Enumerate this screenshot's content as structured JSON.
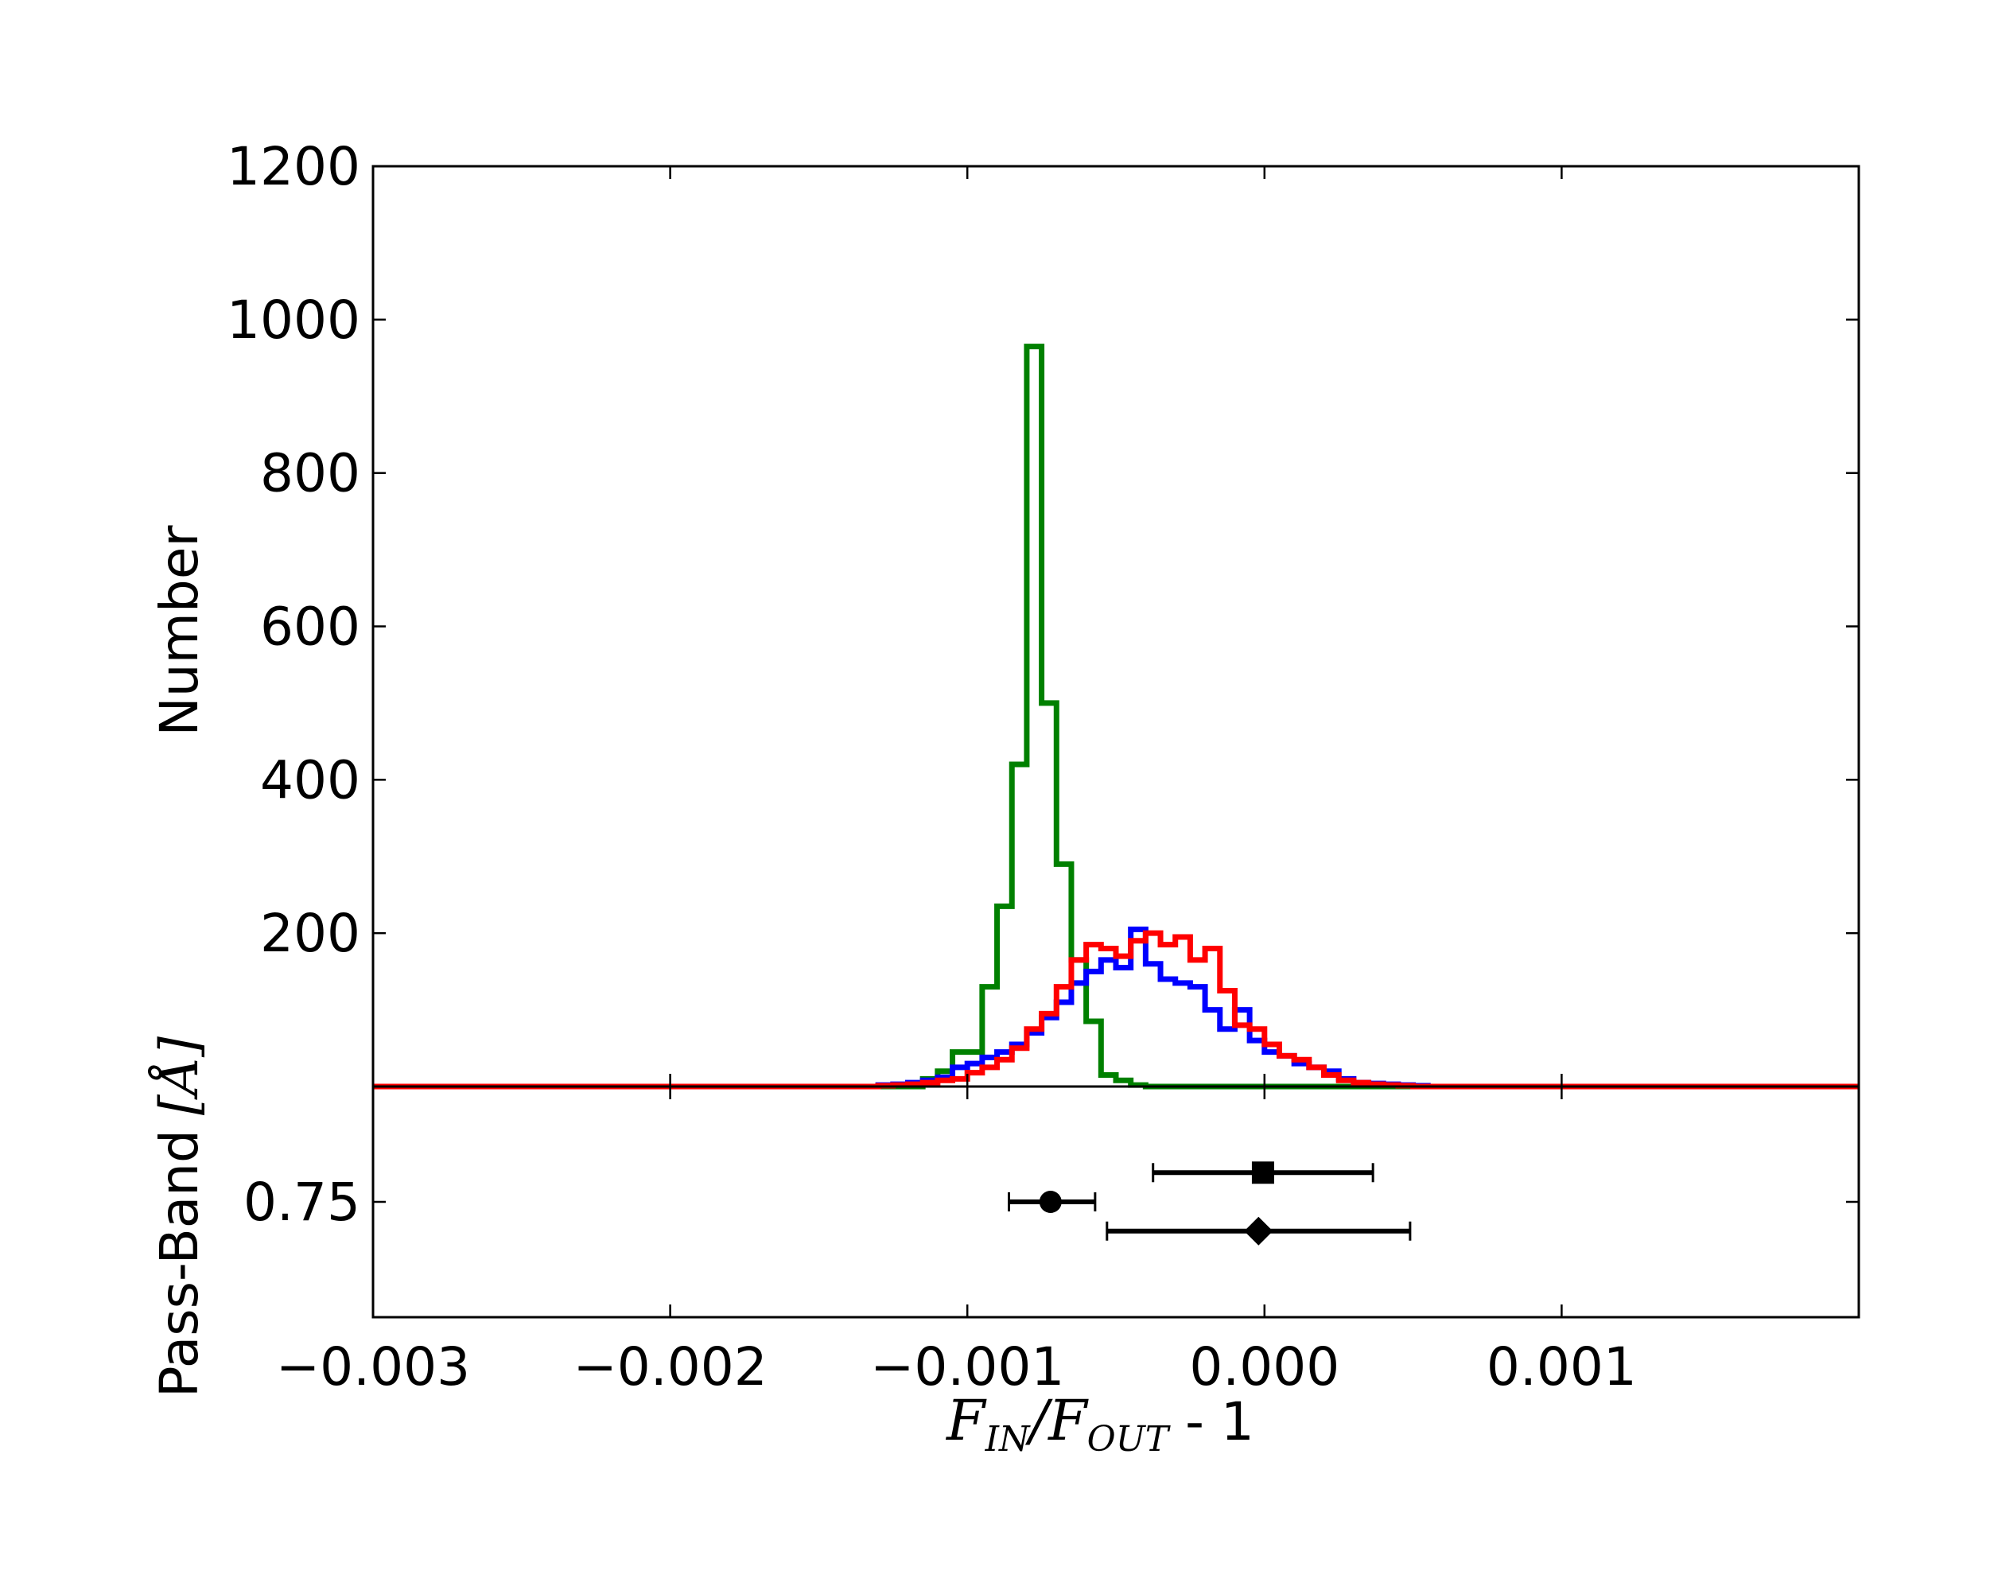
{
  "chart_data": [
    {
      "type": "histogram",
      "ylabel": "Number",
      "xlim": [
        -0.003,
        0.002
      ],
      "ylim": [
        0,
        1200
      ],
      "yticks": [
        "200",
        "400",
        "600",
        "800",
        "1000",
        "1200"
      ],
      "bin_width": 5e-05,
      "series": [
        {
          "color": "#008000",
          "x_start": -0.00115,
          "counts": [
            10,
            20,
            45,
            45,
            130,
            235,
            420,
            965,
            500,
            290,
            165,
            85,
            15,
            8,
            2
          ]
        },
        {
          "color": "#0000ff",
          "x_start": -0.0013,
          "counts": [
            2,
            3,
            5,
            8,
            12,
            25,
            30,
            38,
            45,
            55,
            70,
            90,
            110,
            135,
            150,
            165,
            155,
            205,
            160,
            140,
            135,
            130,
            100,
            75,
            100,
            60,
            45,
            40,
            30,
            25,
            20,
            10,
            5,
            4,
            3,
            2,
            1
          ]
        },
        {
          "color": "#ff0000",
          "x_start": -0.0013,
          "counts": [
            1,
            2,
            3,
            5,
            8,
            10,
            18,
            25,
            35,
            50,
            75,
            95,
            130,
            165,
            185,
            180,
            170,
            190,
            200,
            185,
            195,
            165,
            180,
            125,
            80,
            75,
            55,
            40,
            35,
            25,
            15,
            8,
            5,
            3,
            2,
            1
          ]
        }
      ]
    },
    {
      "type": "scatter",
      "ylabel": "Pass-Band",
      "ylabel_unit": "[Å]",
      "xlabel_parts": {
        "f1": "F",
        "s1": "IN",
        "slash": "/",
        "f2": "F",
        "s2": "OUT",
        "rest": " - 1"
      },
      "xlim": [
        -0.003,
        0.002
      ],
      "xticks": [
        "−0.003",
        "−0.002",
        "−0.001",
        "0.000",
        "0.001"
      ],
      "yticks": [
        "0.75"
      ],
      "ylim": [
        0.6,
        0.9
      ],
      "points": [
        {
          "marker": "square",
          "x": -5e-06,
          "y": 0.788,
          "xerr": [
            0.00037,
            0.00037
          ]
        },
        {
          "marker": "circle",
          "x": -0.00072,
          "y": 0.75,
          "xerr": [
            0.00014,
            0.00015
          ]
        },
        {
          "marker": "diamond",
          "x": -2e-05,
          "y": 0.712,
          "xerr": [
            0.00051,
            0.00051
          ]
        }
      ]
    }
  ]
}
